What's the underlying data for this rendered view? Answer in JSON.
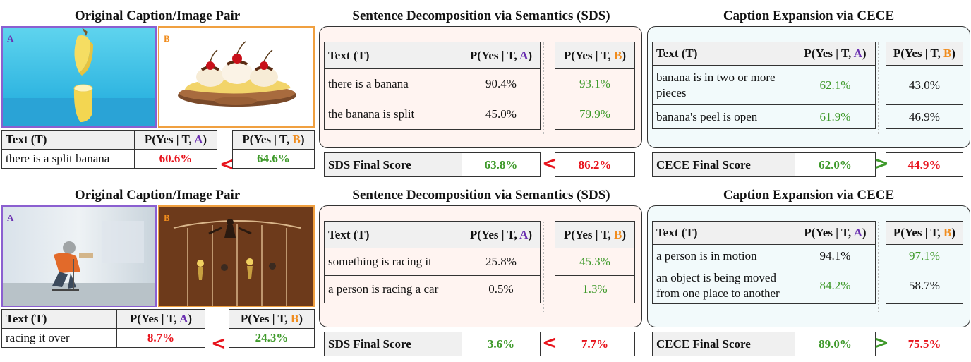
{
  "colors": {
    "image_a": "#8b5fd0",
    "image_b": "#f0a040",
    "green": "#3f9a2b",
    "red": "#e8131c",
    "sds_bg": "#fff4f1",
    "cece_bg": "#f2fafb"
  },
  "row1": {
    "orig_heading": "Original Caption/Image Pair",
    "sds_heading": "Sentence Decomposition via Semantics (SDS)",
    "cece_heading": "Caption Expansion via CECE",
    "tag_a": "A",
    "tag_b": "B",
    "orig": {
      "text_header": "Text (T)",
      "pa_prefix": "P(Yes | T, ",
      "a": "A",
      "pb_prefix": "P(Yes | T, ",
      "b": "B",
      "close": ")",
      "text": "there is a split banana",
      "pa": "60.6%",
      "comparator": "<",
      "pb": "64.6%"
    },
    "sds": {
      "text_header": "Text (T)",
      "rows": [
        {
          "text": "there is a banana",
          "pa": "90.4%",
          "pb": "93.1%"
        },
        {
          "text": "the banana is split",
          "pa": "45.0%",
          "pb": "79.9%"
        }
      ],
      "final_label": "SDS Final Score",
      "final_a": "63.8%",
      "comparator": "<",
      "final_b": "86.2%"
    },
    "cece": {
      "text_header": "Text (T)",
      "rows": [
        {
          "text": "banana is in two or more pieces",
          "pa": "62.1%",
          "pb": "43.0%"
        },
        {
          "text": "banana's peel is open",
          "pa": "61.9%",
          "pb": "46.9%"
        }
      ],
      "final_label": "CECE Final Score",
      "final_a": "62.0%",
      "comparator": ">",
      "final_b": "44.9%"
    }
  },
  "row2": {
    "orig_heading": "Original Caption/Image Pair",
    "sds_heading": "Sentence Decomposition via Semantics (SDS)",
    "cece_heading": "Caption Expansion via CECE",
    "tag_a": "A",
    "tag_b": "B",
    "orig": {
      "text_header": "Text (T)",
      "text": "racing it over",
      "pa": "8.7%",
      "comparator": "<",
      "pb": "24.3%"
    },
    "sds": {
      "text_header": "Text (T)",
      "rows": [
        {
          "text": "something is racing it",
          "pa": "25.8%",
          "pb": "45.3%"
        },
        {
          "text": "a person is racing a car",
          "pa": "0.5%",
          "pb": "1.3%"
        }
      ],
      "final_label": "SDS Final Score",
      "final_a": "3.6%",
      "comparator": "<",
      "final_b": "7.7%"
    },
    "cece": {
      "text_header": "Text (T)",
      "rows": [
        {
          "text": "a person is in motion",
          "pa": "94.1%",
          "pb": "97.1%"
        },
        {
          "text": "an object is being moved from one place to another",
          "pa": "84.2%",
          "pb": "58.7%"
        }
      ],
      "final_label": "CECE Final Score",
      "final_a": "89.0%",
      "comparator": ">",
      "final_b": "75.5%"
    }
  },
  "labels": {
    "pyes": "P(Yes | T, ",
    "close": ")"
  }
}
